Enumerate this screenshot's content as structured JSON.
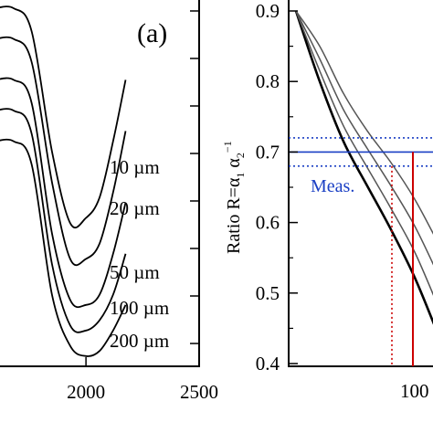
{
  "chart_data": [
    {
      "type": "line",
      "panel_label": "(a)",
      "xlabel": "",
      "ylabel": "",
      "xlim": [
        1600,
        2500
      ],
      "x_ticks": [
        "2000",
        "2500"
      ],
      "x_tick_values": [
        2000,
        2500
      ],
      "series": [
        {
          "name": "10 µm",
          "x": [
            1600,
            1680,
            1760,
            1850,
            1930,
            2000,
            2060,
            2120,
            2175
          ],
          "values": [
            0.7,
            0.7,
            0.655,
            0.42,
            0.28,
            0.29,
            0.33,
            0.44,
            0.56
          ]
        },
        {
          "name": "20 µm",
          "x": [
            1600,
            1680,
            1760,
            1850,
            1930,
            2000,
            2060,
            2120,
            2175
          ],
          "values": [
            0.64,
            0.64,
            0.595,
            0.36,
            0.21,
            0.21,
            0.24,
            0.34,
            0.46
          ]
        },
        {
          "name": "50 µm",
          "x": [
            1600,
            1680,
            1760,
            1850,
            1930,
            2000,
            2060,
            2120,
            2175
          ],
          "values": [
            0.56,
            0.56,
            0.515,
            0.26,
            0.13,
            0.12,
            0.14,
            0.22,
            0.32
          ]
        },
        {
          "name": "100 µm",
          "x": [
            1600,
            1680,
            1760,
            1850,
            1930,
            2000,
            2060,
            2120,
            2175
          ],
          "values": [
            0.5,
            0.5,
            0.455,
            0.2,
            0.08,
            0.07,
            0.09,
            0.14,
            0.22
          ]
        },
        {
          "name": "200 µm",
          "x": [
            1600,
            1680,
            1760,
            1850,
            1930,
            2000,
            2060,
            2120,
            2175
          ],
          "values": [
            0.44,
            0.44,
            0.395,
            0.14,
            0.04,
            0.02,
            0.03,
            0.07,
            0.12
          ]
        }
      ],
      "curve_labels": [
        "10 µm",
        "20 µm",
        "50 µm",
        "100 µm",
        "200 µm"
      ]
    },
    {
      "type": "line",
      "ylabel_main": "Ratio R=α",
      "ylabel_sub1": "1",
      "ylabel_alpha2": " α",
      "ylabel_sub2": "2",
      "ylabel_sup": "−1",
      "ylim": [
        0.39,
        0.9
      ],
      "y_ticks": [
        "0.4",
        "0.5",
        "0.6",
        "0.7",
        "0.8",
        "0.9"
      ],
      "y_tick_values": [
        0.4,
        0.5,
        0.6,
        0.7,
        0.8,
        0.9
      ],
      "x_tick_partial": "100",
      "series": [
        {
          "name": "",
          "color": "#000000",
          "values": [
            0.9,
            0.8,
            0.715,
            0.652,
            0.59,
            0.522,
            0.44
          ]
        },
        {
          "name": "",
          "color": "#555555",
          "values": [
            0.9,
            0.815,
            0.737,
            0.678,
            0.62,
            0.558,
            0.48
          ]
        },
        {
          "name": "",
          "color": "#555555",
          "values": [
            0.9,
            0.832,
            0.76,
            0.705,
            0.652,
            0.595,
            0.525
          ]
        },
        {
          "name": "",
          "color": "#555555",
          "values": [
            0.9,
            0.85,
            0.783,
            0.73,
            0.685,
            0.633,
            0.57
          ]
        }
      ],
      "measurement": {
        "label": "Meas.",
        "R": 0.7,
        "R_low": 0.68,
        "R_high": 0.72,
        "h_color": "#1a3fc4",
        "v_color": "#cc0000"
      }
    }
  ]
}
